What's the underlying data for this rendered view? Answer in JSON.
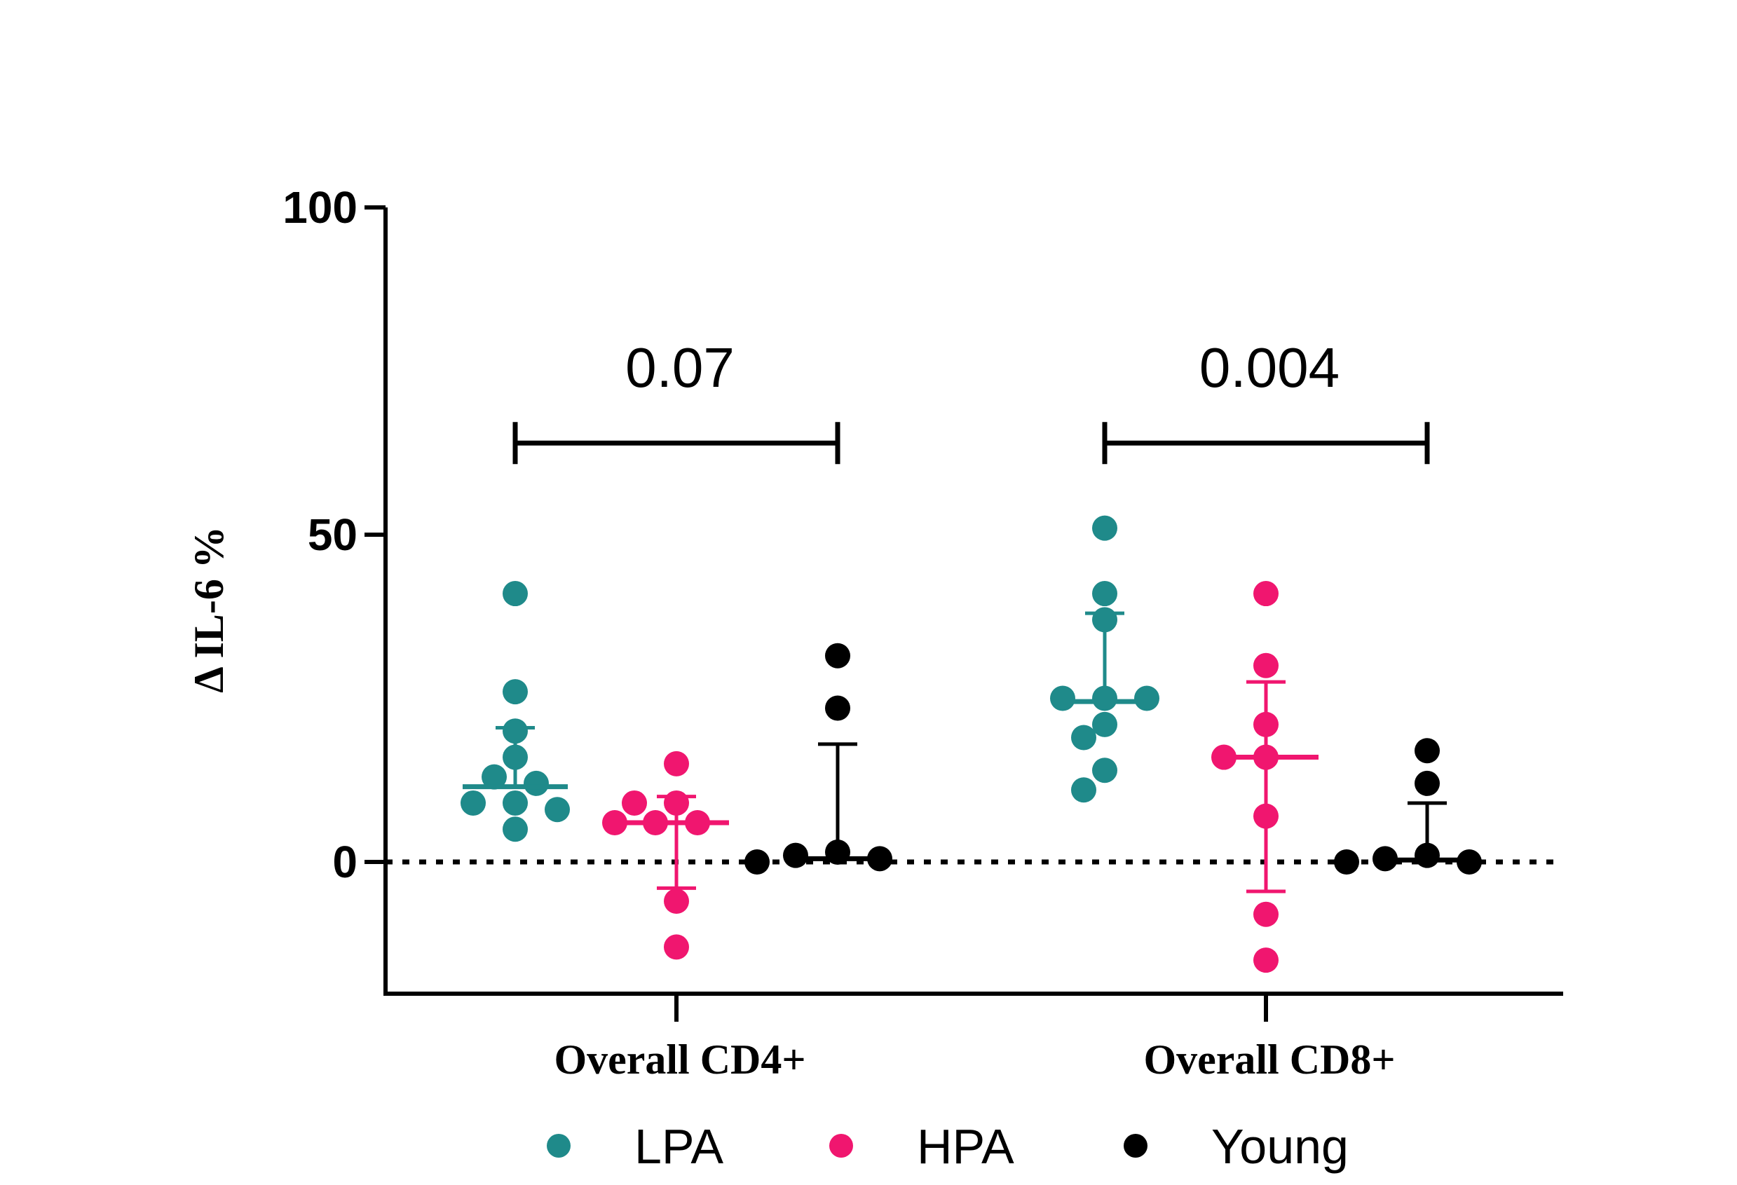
{
  "chart_data": {
    "type": "scatter",
    "ylabel": "Δ IL-6 %",
    "xlabel": "",
    "ylim": [
      -20,
      100
    ],
    "yticks": [
      0,
      50,
      100
    ],
    "categories": [
      "Overall CD4+",
      "Overall CD8+"
    ],
    "series": [
      {
        "name": "LPA",
        "color": "#1f8a8a",
        "points": {
          "Overall CD4+": [
            41,
            26,
            20,
            16,
            13,
            12,
            9,
            9,
            8,
            5
          ],
          "Overall CD8+": [
            51,
            41,
            37,
            25,
            25,
            25,
            21,
            19,
            14,
            11
          ]
        },
        "center": {
          "Overall CD4+": 11.5,
          "Overall CD8+": 24.5
        },
        "error_high": {
          "Overall CD4+": 20.5,
          "Overall CD8+": 38
        },
        "error_low": {
          "Overall CD4+": 11.5,
          "Overall CD8+": 24.5
        }
      },
      {
        "name": "HPA",
        "color": "#f0166f",
        "points": {
          "Overall CD4+": [
            15,
            9,
            9,
            6,
            6,
            6,
            -6,
            -13
          ],
          "Overall CD8+": [
            41,
            30,
            21,
            16,
            16,
            7,
            -8,
            -15
          ]
        },
        "center": {
          "Overall CD4+": 6,
          "Overall CD8+": 16
        },
        "error_high": {
          "Overall CD4+": 10,
          "Overall CD8+": 27.5
        },
        "error_low": {
          "Overall CD4+": -4,
          "Overall CD8+": -4.5
        }
      },
      {
        "name": "Young",
        "color": "#000000",
        "points": {
          "Overall CD4+": [
            31.5,
            23.5,
            1.5,
            1,
            0.5,
            0
          ],
          "Overall CD8+": [
            17,
            12,
            1,
            0.5,
            0,
            0
          ]
        },
        "center": {
          "Overall CD4+": 0.5,
          "Overall CD8+": 0.3
        },
        "error_high": {
          "Overall CD4+": 18,
          "Overall CD8+": 9
        },
        "error_low": {
          "Overall CD4+": 0.5,
          "Overall CD8+": 0.3
        }
      }
    ],
    "annotations": [
      {
        "category": "Overall CD4+",
        "text": "0.07",
        "from": "LPA",
        "to": "Young",
        "y": 64
      },
      {
        "category": "Overall CD8+",
        "text": "0.004",
        "from": "LPA",
        "to": "Young",
        "y": 64
      }
    ],
    "reference_line": {
      "y": 0,
      "style": "dotted"
    },
    "legend_position": "bottom",
    "grid": false
  }
}
